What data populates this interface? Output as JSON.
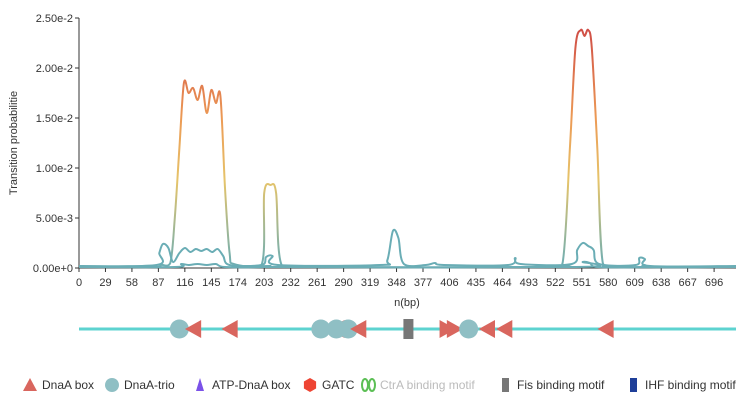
{
  "chart_data": {
    "type": "line",
    "title": "",
    "xlabel": "n(bp)",
    "ylabel": "Transition probabilitie",
    "xlim": [
      0,
      720
    ],
    "ylim": [
      0,
      0.025
    ],
    "x_ticks": [
      "0",
      "29",
      "58",
      "87",
      "116",
      "145",
      "174",
      "203",
      "232",
      "261",
      "290",
      "319",
      "348",
      "377",
      "406",
      "435",
      "464",
      "493",
      "522",
      "551",
      "580",
      "609",
      "638",
      "667",
      "696"
    ],
    "y_ticks": [
      {
        "value": 0,
        "label": "0.00e+0"
      },
      {
        "value": 0.005,
        "label": "5.00e-3"
      },
      {
        "value": 0.01,
        "label": "1.00e-2"
      },
      {
        "value": 0.015,
        "label": "1.50e-2"
      },
      {
        "value": 0.02,
        "label": "2.00e-2"
      },
      {
        "value": 0.025,
        "label": "2.50e-2"
      }
    ],
    "series": [
      {
        "color": "gradient",
        "points": [
          [
            0,
            0.0001
          ],
          [
            80,
            0.0001
          ],
          [
            90,
            0.0003
          ],
          [
            100,
            0.0005
          ],
          [
            105,
            0.005
          ],
          [
            110,
            0.012
          ],
          [
            115,
            0.0185
          ],
          [
            120,
            0.0175
          ],
          [
            125,
            0.018
          ],
          [
            130,
            0.0168
          ],
          [
            135,
            0.0182
          ],
          [
            140,
            0.0155
          ],
          [
            145,
            0.0178
          ],
          [
            150,
            0.0165
          ],
          [
            155,
            0.0172
          ],
          [
            160,
            0.008
          ],
          [
            165,
            0.0015
          ],
          [
            170,
            0.0004
          ],
          [
            200,
            0.0003
          ],
          [
            203,
            0.0075
          ],
          [
            210,
            0.0083
          ],
          [
            216,
            0.0075
          ],
          [
            222,
            0.0003
          ],
          [
            250,
            0.0001
          ],
          [
            515,
            0.0001
          ],
          [
            530,
            0.0005
          ],
          [
            538,
            0.012
          ],
          [
            544,
            0.022
          ],
          [
            550,
            0.0238
          ],
          [
            554,
            0.0232
          ],
          [
            558,
            0.0238
          ],
          [
            562,
            0.022
          ],
          [
            568,
            0.012
          ],
          [
            574,
            0.0005
          ],
          [
            590,
            0.0001
          ],
          [
            720,
            0.0001
          ]
        ]
      },
      {
        "color": "#6aadb5",
        "points": [
          [
            0,
            0.0002
          ],
          [
            85,
            0.0003
          ],
          [
            88,
            0.0015
          ],
          [
            92,
            0.0024
          ],
          [
            98,
            0.002
          ],
          [
            103,
            0.0006
          ],
          [
            110,
            0.0015
          ],
          [
            116,
            0.002
          ],
          [
            122,
            0.0016
          ],
          [
            128,
            0.0019
          ],
          [
            134,
            0.0017
          ],
          [
            140,
            0.0019
          ],
          [
            146,
            0.0016
          ],
          [
            152,
            0.0019
          ],
          [
            158,
            0.0012
          ],
          [
            165,
            0.0003
          ],
          [
            200,
            0.0003
          ],
          [
            205,
            0.0011
          ],
          [
            212,
            0.0012
          ],
          [
            218,
            0.0003
          ],
          [
            330,
            0.0003
          ],
          [
            338,
            0.0008
          ],
          [
            344,
            0.0037
          ],
          [
            350,
            0.003
          ],
          [
            356,
            0.0004
          ],
          [
            380,
            0.0003
          ],
          [
            390,
            0.0005
          ],
          [
            400,
            0.0003
          ],
          [
            470,
            0.0003
          ],
          [
            478,
            0.001
          ],
          [
            484,
            0.0004
          ],
          [
            540,
            0.0004
          ],
          [
            546,
            0.0018
          ],
          [
            552,
            0.0025
          ],
          [
            558,
            0.0022
          ],
          [
            564,
            0.0018
          ],
          [
            570,
            0.0004
          ],
          [
            610,
            0.0003
          ],
          [
            614,
            0.001
          ],
          [
            620,
            0.0009
          ],
          [
            626,
            0.0002
          ],
          [
            720,
            0.0002
          ]
        ]
      },
      {
        "color": "#6aadb5",
        "points": [
          [
            0,
            0.0001
          ],
          [
            105,
            0.0001
          ],
          [
            112,
            0.0004
          ],
          [
            120,
            0.0003
          ],
          [
            130,
            0.0004
          ],
          [
            140,
            0.0003
          ],
          [
            150,
            0.0004
          ],
          [
            160,
            0.0001
          ],
          [
            205,
            0.0001
          ],
          [
            210,
            0.0002
          ],
          [
            216,
            0.0001
          ],
          [
            545,
            0.0001
          ],
          [
            552,
            0.0006
          ],
          [
            560,
            0.0005
          ],
          [
            568,
            0.0001
          ],
          [
            615,
            0.0001
          ],
          [
            620,
            0.0003
          ],
          [
            626,
            0.0001
          ],
          [
            720,
            0.0001
          ]
        ]
      }
    ],
    "track": {
      "xlim": [
        0,
        720
      ],
      "features": [
        {
          "type": "DnaA-trio",
          "pos": 110
        },
        {
          "type": "DnaA box",
          "pos": 125,
          "direction": "left"
        },
        {
          "type": "DnaA box",
          "pos": 165,
          "direction": "left"
        },
        {
          "type": "DnaA-trio",
          "pos": 265
        },
        {
          "type": "DnaA box",
          "pos": 282,
          "direction": "left"
        },
        {
          "type": "DnaA-trio",
          "pos": 295
        },
        {
          "type": "DnaA box",
          "pos": 306,
          "direction": "left"
        },
        {
          "type": "DnaA-trio",
          "pos": 282
        },
        {
          "type": "Fis binding motif",
          "pos": 361
        },
        {
          "type": "DnaA box",
          "pos": 404,
          "direction": "right"
        },
        {
          "type": "DnaA box",
          "pos": 412,
          "direction": "right"
        },
        {
          "type": "DnaA-trio",
          "pos": 427
        },
        {
          "type": "DnaA box",
          "pos": 447,
          "direction": "left"
        },
        {
          "type": "DnaA box",
          "pos": 466,
          "direction": "left"
        },
        {
          "type": "DnaA box",
          "pos": 577,
          "direction": "left"
        }
      ]
    },
    "legend": [
      {
        "label": "DnaA box",
        "shape": "triangle",
        "color": "#d9665e",
        "enabled": true
      },
      {
        "label": "DnaA-trio",
        "shape": "circle",
        "color": "#8fbfc4",
        "enabled": true
      },
      {
        "label": "ATP-DnaA box",
        "shape": "triangle-small",
        "color": "#7b52e8",
        "enabled": true
      },
      {
        "label": "GATC",
        "shape": "hexagon",
        "color": "#ee4433",
        "enabled": true
      },
      {
        "label": "CtrA binding motif",
        "shape": "double-leaf",
        "color": "#5cbf55",
        "enabled": false
      },
      {
        "label": "Fis binding motif",
        "shape": "rect",
        "color": "#777777",
        "enabled": true
      },
      {
        "label": "IHF binding motif",
        "shape": "rect",
        "color": "#1f3f99",
        "enabled": true
      }
    ]
  }
}
